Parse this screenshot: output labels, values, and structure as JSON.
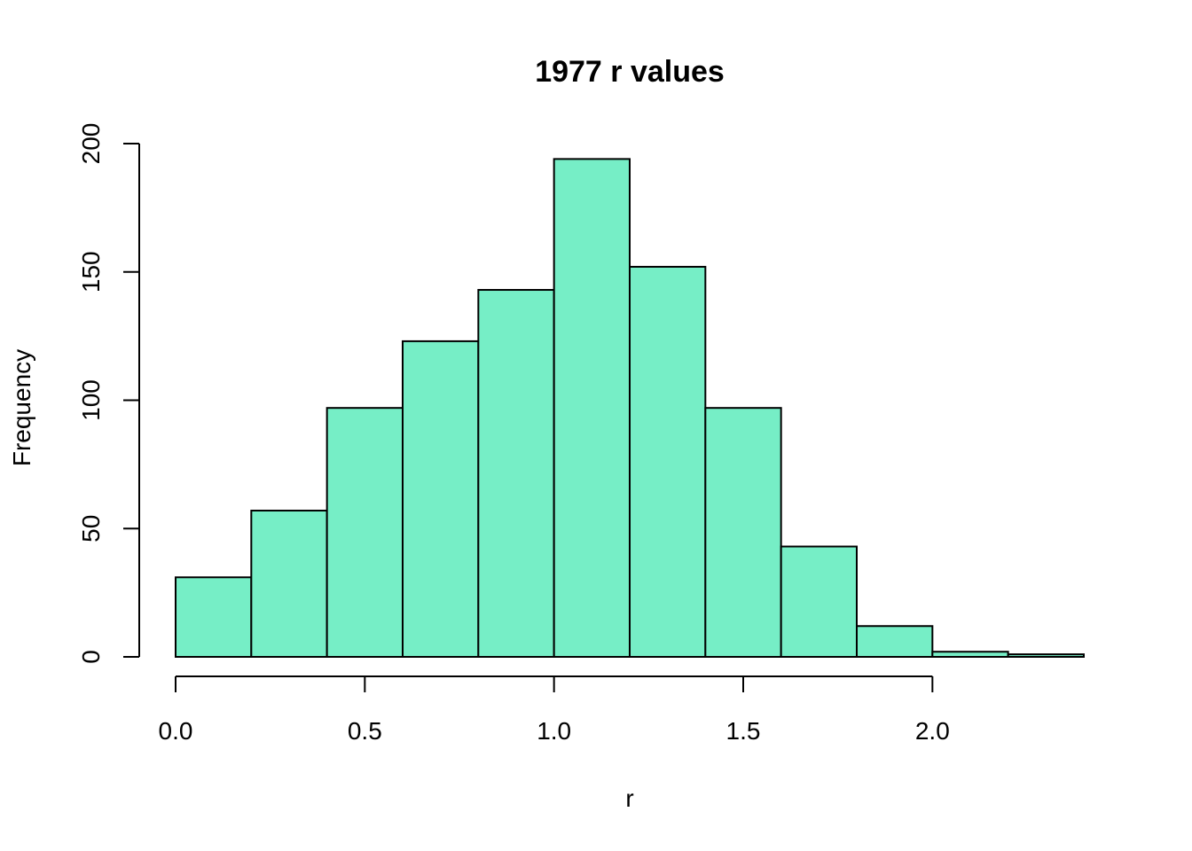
{
  "chart_data": {
    "type": "bar",
    "subtype": "histogram",
    "title": "1977 r values",
    "xlabel": "r",
    "ylabel": "Frequency",
    "bins": [
      {
        "start": 0.0,
        "end": 0.2,
        "count": 31
      },
      {
        "start": 0.2,
        "end": 0.4,
        "count": 57
      },
      {
        "start": 0.4,
        "end": 0.6,
        "count": 97
      },
      {
        "start": 0.6,
        "end": 0.8,
        "count": 123
      },
      {
        "start": 0.8,
        "end": 1.0,
        "count": 143
      },
      {
        "start": 1.0,
        "end": 1.2,
        "count": 194
      },
      {
        "start": 1.2,
        "end": 1.4,
        "count": 152
      },
      {
        "start": 1.4,
        "end": 1.6,
        "count": 97
      },
      {
        "start": 1.6,
        "end": 1.8,
        "count": 43
      },
      {
        "start": 1.8,
        "end": 2.0,
        "count": 12
      },
      {
        "start": 2.0,
        "end": 2.2,
        "count": 2
      },
      {
        "start": 2.2,
        "end": 2.4,
        "count": 1
      }
    ],
    "xlim": [
      0.0,
      2.4
    ],
    "ylim": [
      0,
      200
    ],
    "x_ticks": [
      "0.0",
      "0.5",
      "1.0",
      "1.5",
      "2.0"
    ],
    "y_ticks": [
      "0",
      "50",
      "100",
      "150",
      "200"
    ],
    "grid": false,
    "colors": {
      "bar_fill": "#76EEC6",
      "bar_edge": "#000000"
    }
  }
}
